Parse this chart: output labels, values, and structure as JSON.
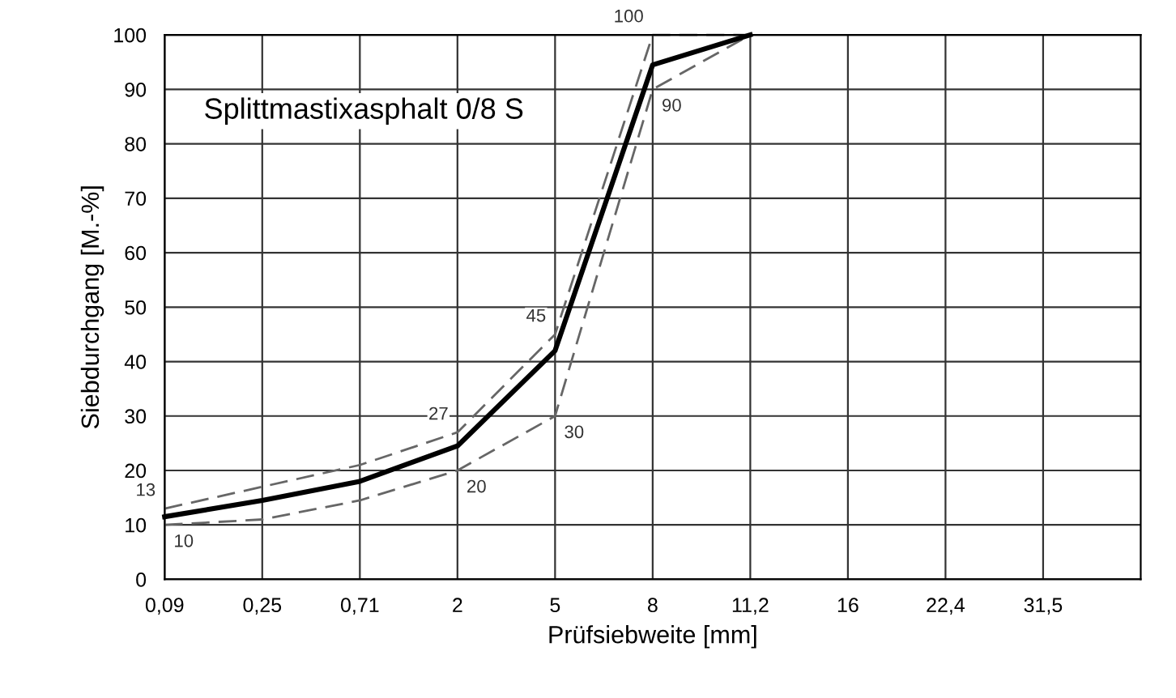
{
  "chart_data": {
    "type": "line",
    "title": "Splittmastixasphalt 0/8 S",
    "xlabel": "Prüfsiebweite [mm]",
    "ylabel": "Siebdurchgang [M.-%]",
    "categories": [
      "0,09",
      "0,25",
      "0,71",
      "2",
      "5",
      "8",
      "11,2",
      "16",
      "22,4",
      "31,5"
    ],
    "series": [
      {
        "color": "#000000",
        "line_style": "solid",
        "values": [
          11.5,
          14.5,
          18,
          24.5,
          42,
          94.5,
          100,
          null,
          null,
          null
        ]
      },
      {
        "color": "#666666",
        "line_style": "dashed",
        "values": [
          13,
          17,
          21,
          27,
          45,
          100,
          100,
          null,
          null,
          null
        ],
        "value_labels": [
          "13",
          null,
          null,
          "27",
          "45",
          "100",
          null,
          null,
          null,
          null
        ]
      },
      {
        "color": "#666666",
        "line_style": "dashed",
        "values": [
          10,
          11,
          14.5,
          20,
          30,
          90,
          100,
          null,
          null,
          null
        ],
        "value_labels": [
          "10",
          null,
          null,
          "20",
          "30",
          "90",
          null,
          null,
          null,
          null
        ]
      }
    ],
    "ylim": [
      0,
      100
    ],
    "yticks": [
      0,
      10,
      20,
      30,
      40,
      50,
      60,
      70,
      80,
      90,
      100
    ],
    "grid": true,
    "legend": false,
    "marker": "none"
  }
}
